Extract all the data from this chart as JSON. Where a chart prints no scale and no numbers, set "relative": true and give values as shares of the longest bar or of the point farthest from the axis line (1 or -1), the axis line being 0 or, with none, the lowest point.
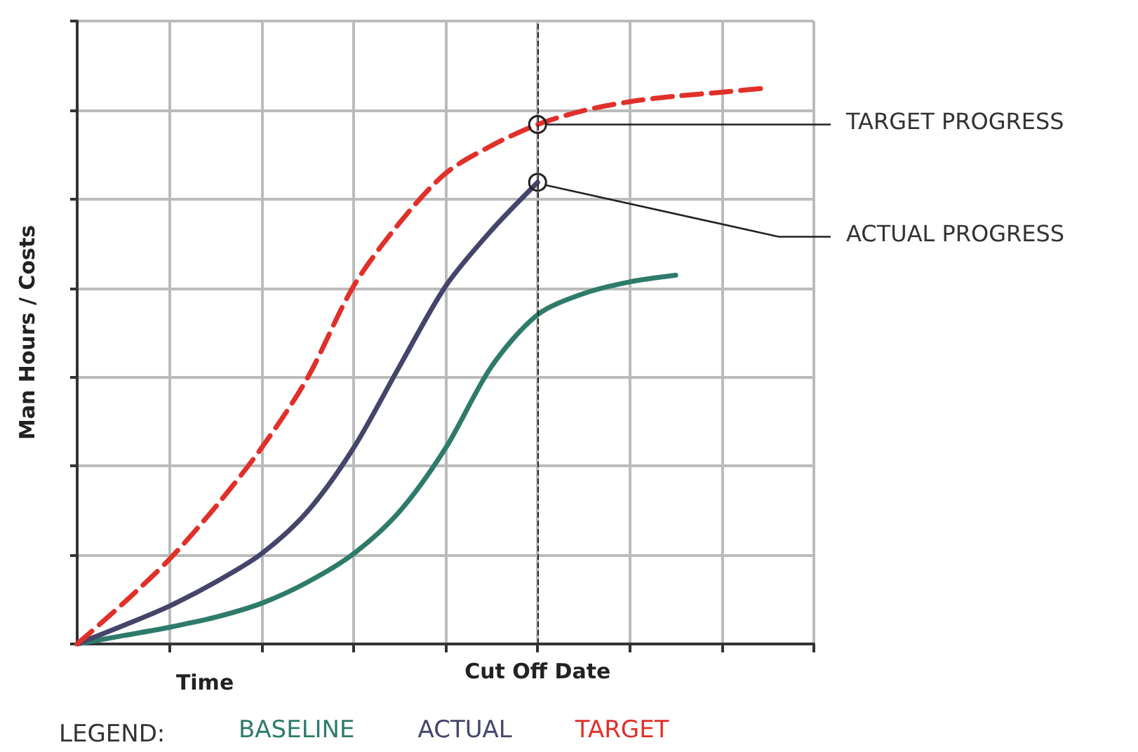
{
  "chart_data": {
    "type": "line",
    "relative": true,
    "xlabel": "Time",
    "ylabel": "Man Hours / Costs",
    "legend_title": "LEGEND:",
    "legend": "bottom",
    "grid": true,
    "marker": "none",
    "categories": [
      null,
      null,
      null,
      null,
      null,
      null,
      null,
      null,
      null,
      null,
      null,
      null,
      null,
      null,
      null,
      null,
      null
    ],
    "series": [
      {
        "name": "BASELINE",
        "color": "#2e7b6b",
        "line_style": "solid",
        "values": [
          0,
          0.015,
          0.03,
          0.048,
          0.073,
          0.111,
          0.162,
          0.238,
          0.352,
          0.499,
          0.592,
          0.63,
          0.651,
          0.663,
          null,
          null,
          null
        ]
      },
      {
        "name": "ACTUAL",
        "color": "#45456b",
        "line_style": "solid",
        "values": [
          0,
          0.033,
          0.068,
          0.111,
          0.162,
          0.238,
          0.352,
          0.499,
          0.643,
          0.744,
          0.83,
          null,
          null,
          null,
          null,
          null,
          null
        ]
      },
      {
        "name": "TARGET",
        "color": "#e0302a",
        "line_style": "dashed",
        "values": [
          0,
          0.073,
          0.152,
          0.246,
          0.352,
          0.478,
          0.643,
          0.757,
          0.846,
          0.896,
          0.934,
          0.959,
          0.975,
          0.985,
          0.992,
          1,
          null
        ]
      }
    ],
    "annotations": [
      "Cut Off Date",
      "TARGET PROGRESS",
      "ACTUAL PROGRESS"
    ]
  }
}
